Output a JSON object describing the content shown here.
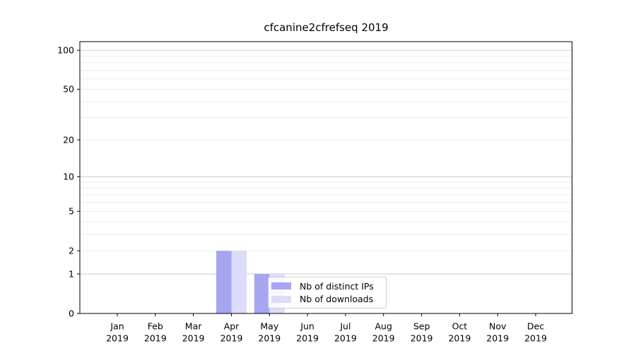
{
  "chart_data": {
    "type": "bar",
    "title": "cfcanine2cfrefseq 2019",
    "categories": [
      "Jan 2019",
      "Feb 2019",
      "Mar 2019",
      "Apr 2019",
      "May 2019",
      "Jun 2019",
      "Jul 2019",
      "Aug 2019",
      "Sep 2019",
      "Oct 2019",
      "Nov 2019",
      "Dec 2019"
    ],
    "series": [
      {
        "name": "Nb of distinct IPs",
        "color": "#a5a5f2",
        "values": [
          0,
          0,
          0,
          2,
          1,
          0,
          0,
          0,
          0,
          0,
          0,
          0
        ]
      },
      {
        "name": "Nb of downloads",
        "color": "#dcdcfa",
        "values": [
          0,
          0,
          0,
          2,
          1,
          0,
          0,
          0,
          0,
          0,
          0,
          0
        ]
      }
    ],
    "yscale": "log1p",
    "ytick_labels": [
      "100",
      "50",
      "20",
      "10",
      "5",
      "2",
      "1",
      "0"
    ],
    "ytick_values": [
      100,
      50,
      20,
      10,
      5,
      2,
      1,
      0
    ],
    "ylim": [
      0,
      115
    ],
    "xlabel": "",
    "ylabel": "",
    "grid": "horizontal",
    "legend_position": "lower-center"
  },
  "colors": {
    "axis": "#000000",
    "text": "#000000",
    "grid_major": "#c9c9c9",
    "grid_minor": "#eaeaea",
    "legend_border": "#cccccc",
    "bar_distinct_ips": "#a5a5f2",
    "bar_downloads": "#dcdcfa"
  }
}
